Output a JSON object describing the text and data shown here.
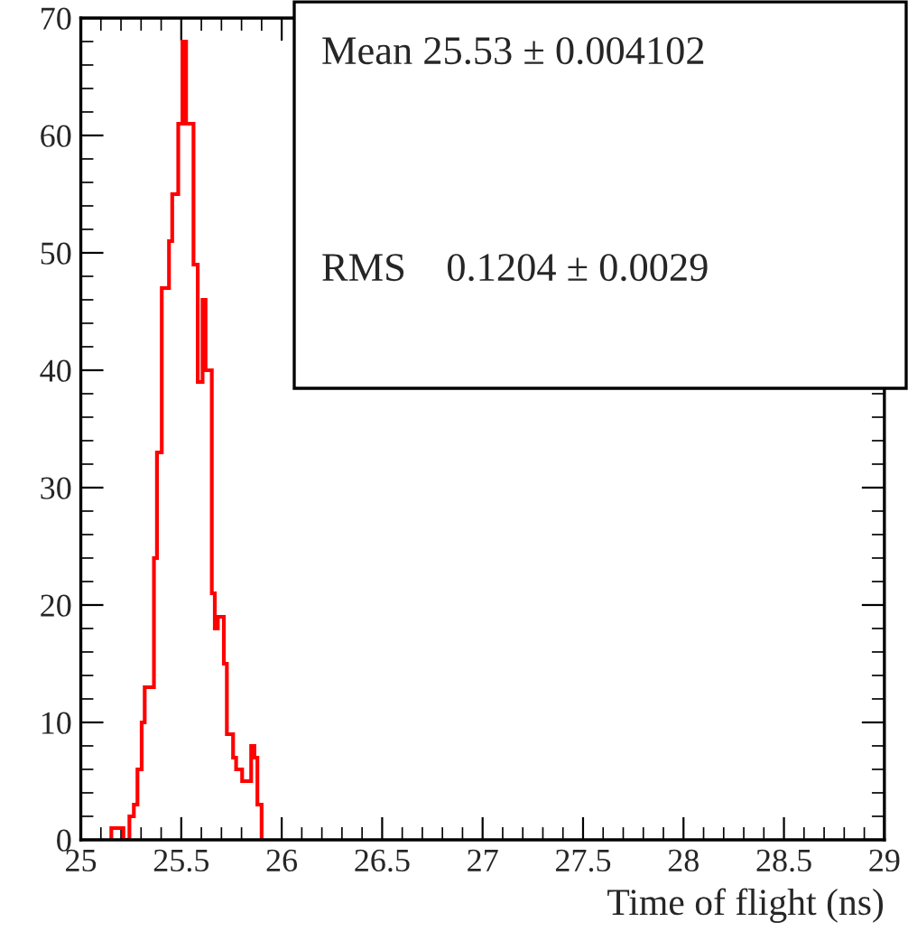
{
  "chart_data": {
    "type": "histogram",
    "xlabel": "Time of flight (ns)",
    "bins": [
      25.152,
      25.212,
      25.242,
      25.264,
      25.282,
      25.303,
      25.318,
      25.364,
      25.379,
      25.403,
      25.439,
      25.455,
      25.485,
      25.506,
      25.524,
      25.561,
      25.582,
      25.606,
      25.621,
      25.652,
      25.667,
      25.682,
      25.712,
      25.727,
      25.758,
      25.773,
      25.803,
      25.848,
      25.864,
      25.879,
      25.9
    ],
    "values": [
      1,
      0,
      2,
      3,
      6,
      10,
      13,
      24,
      33,
      47,
      51,
      55,
      61,
      68,
      61,
      49,
      39,
      46,
      40,
      21,
      18,
      19,
      15,
      9,
      7,
      6,
      5,
      8,
      7,
      3
    ],
    "color": "#ff0000",
    "xlim": [
      25,
      29
    ],
    "xticks": [
      25,
      25.5,
      26,
      26.5,
      27,
      27.5,
      28,
      28.5,
      29
    ],
    "ylim": [
      0,
      70
    ],
    "yticks": [
      0,
      10,
      20,
      30,
      40,
      50,
      60,
      70
    ],
    "annotations": [
      "Mean 25.53 ± 0.004102",
      "RMS    0.1204 ± 0.0029"
    ],
    "grid": false,
    "legend": false
  }
}
